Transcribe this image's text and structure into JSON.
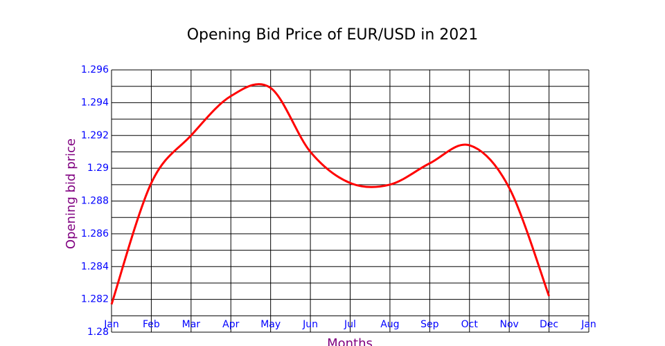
{
  "chart_data": {
    "type": "line",
    "title": "Opening Bid Price of EUR/USD in 2021",
    "x_label": "Months",
    "y_label": "Opening bid price",
    "categories": [
      "Jan",
      "Feb",
      "Mar",
      "Apr",
      "May",
      "Jun",
      "Jul",
      "Aug",
      "Sep",
      "Oct",
      "Nov",
      "Dec",
      "Jan"
    ],
    "series": [
      {
        "color": "#ff0000",
        "values": [
          1.2817,
          1.2891,
          1.292,
          1.2944,
          1.2949,
          1.291,
          1.2891,
          1.289,
          1.2903,
          1.2914,
          1.2888,
          1.2822,
          null
        ]
      }
    ],
    "smooth": true,
    "ylim": [
      1.28,
      1.296
    ],
    "yticks": [
      1.28,
      1.282,
      1.284,
      1.286,
      1.288,
      1.29,
      1.292,
      1.294,
      1.296
    ],
    "minor_yticks": [
      1.281,
      1.283,
      1.285,
      1.287,
      1.289,
      1.291,
      1.293,
      1.295
    ],
    "grid": true
  }
}
